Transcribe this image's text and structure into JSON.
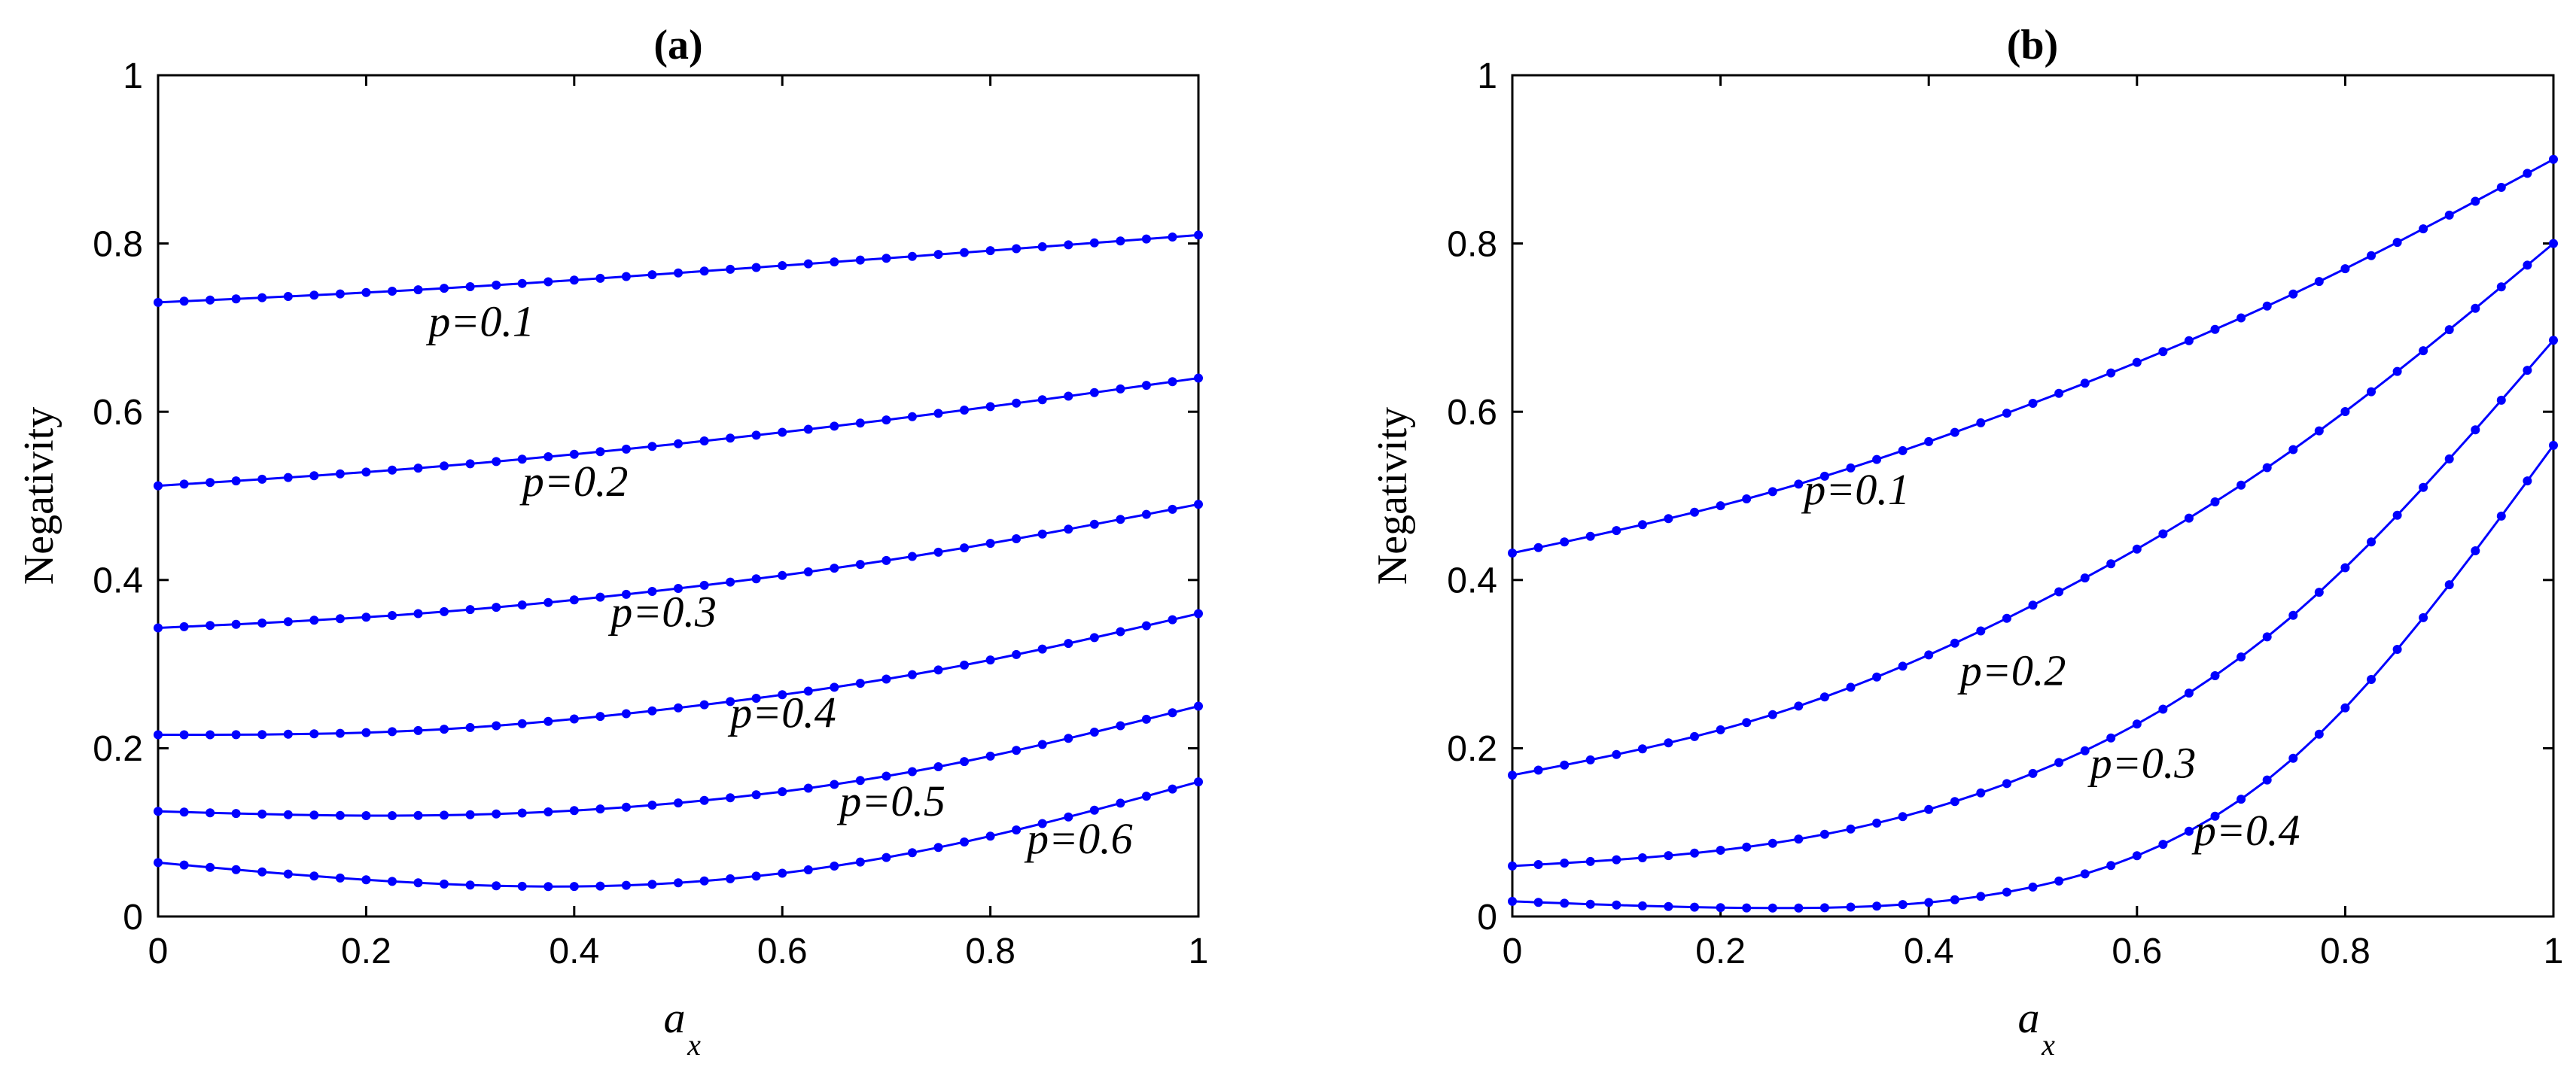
{
  "chart_data": [
    {
      "type": "line",
      "panel": "(a)",
      "title": "(a)",
      "xlabel": {
        "main": "a",
        "sub": "x"
      },
      "ylabel": "Negativity",
      "xlim": [
        0,
        1
      ],
      "ylim": [
        0,
        1
      ],
      "xticks": [
        0,
        0.2,
        0.4,
        0.6,
        0.8,
        1
      ],
      "xtick_labels": [
        "0",
        "0.2",
        "0.4",
        "0.6",
        "0.8",
        "1"
      ],
      "yticks": [
        0,
        0.2,
        0.4,
        0.6,
        0.8,
        1
      ],
      "ytick_labels": [
        "0",
        "0.2",
        "0.4",
        "0.6",
        "0.8",
        "1"
      ],
      "marker_points": 41,
      "color": "#0000ff",
      "series": [
        {
          "name": "p=0.1",
          "label": "p=0.1",
          "x": [
            0,
            0.25,
            0.5,
            0.75,
            1
          ],
          "values": [
            0.73,
            0.745,
            0.765,
            0.787,
            0.81
          ],
          "label_at": [
            0.26,
            0.69
          ]
        },
        {
          "name": "p=0.2",
          "label": "p=0.2",
          "x": [
            0,
            0.25,
            0.5,
            0.75,
            1
          ],
          "values": [
            0.512,
            0.533,
            0.562,
            0.598,
            0.64
          ],
          "label_at": [
            0.35,
            0.5
          ]
        },
        {
          "name": "p=0.3",
          "label": "p=0.3",
          "x": [
            0,
            0.25,
            0.5,
            0.75,
            1
          ],
          "values": [
            0.343,
            0.36,
            0.39,
            0.433,
            0.49
          ],
          "label_at": [
            0.435,
            0.345
          ]
        },
        {
          "name": "p=0.4",
          "label": "p=0.4",
          "x": [
            0,
            0.25,
            0.5,
            0.75,
            1
          ],
          "values": [
            0.216,
            0.221,
            0.248,
            0.293,
            0.36
          ],
          "label_at": [
            0.55,
            0.225
          ]
        },
        {
          "name": "p=0.5",
          "label": "p=0.5",
          "x": [
            0,
            0.25,
            0.5,
            0.75,
            1
          ],
          "values": [
            0.125,
            0.12,
            0.135,
            0.178,
            0.25
          ],
          "label_at": [
            0.655,
            0.12
          ]
        },
        {
          "name": "p=0.6",
          "label": "p=0.6",
          "x": [
            0,
            0.25,
            0.5,
            0.75,
            1
          ],
          "values": [
            0.064,
            0.04,
            0.04,
            0.082,
            0.16
          ],
          "label_at": [
            0.835,
            0.075
          ]
        }
      ]
    },
    {
      "type": "line",
      "panel": "(b)",
      "title": "(b)",
      "xlabel": {
        "main": "a",
        "sub": "x"
      },
      "ylabel": "Negativity",
      "xlim": [
        0,
        1
      ],
      "ylim": [
        0,
        1
      ],
      "xticks": [
        0,
        0.2,
        0.4,
        0.6,
        0.8,
        1
      ],
      "xtick_labels": [
        "0",
        "0.2",
        "0.4",
        "0.6",
        "0.8",
        "1"
      ],
      "yticks": [
        0,
        0.2,
        0.4,
        0.6,
        0.8,
        1
      ],
      "ytick_labels": [
        "0",
        "0.2",
        "0.4",
        "0.6",
        "0.8",
        "1"
      ],
      "marker_points": 41,
      "color": "#0000ff",
      "series": [
        {
          "name": "p=0.1",
          "label": "p=0.1",
          "x": [
            0,
            0.25,
            0.5,
            0.75,
            1
          ],
          "values": [
            0.432,
            0.505,
            0.61,
            0.74,
            0.9
          ],
          "label_at": [
            0.28,
            0.49
          ]
        },
        {
          "name": "p=0.2",
          "label": "p=0.2",
          "x": [
            0,
            0.25,
            0.5,
            0.75,
            1
          ],
          "values": [
            0.168,
            0.24,
            0.37,
            0.555,
            0.8
          ],
          "label_at": [
            0.43,
            0.275
          ]
        },
        {
          "name": "p=0.3",
          "label": "p=0.3",
          "x": [
            0,
            0.25,
            0.5,
            0.75,
            1
          ],
          "values": [
            0.06,
            0.087,
            0.17,
            0.358,
            0.685
          ],
          "label_at": [
            0.555,
            0.165
          ]
        },
        {
          "name": "p=0.4",
          "label": "p=0.4",
          "x": [
            0,
            0.25,
            0.5,
            0.75,
            1
          ],
          "values": [
            0.018,
            0.01,
            0.035,
            0.188,
            0.56
          ],
          "label_at": [
            0.655,
            0.085
          ]
        }
      ]
    }
  ]
}
